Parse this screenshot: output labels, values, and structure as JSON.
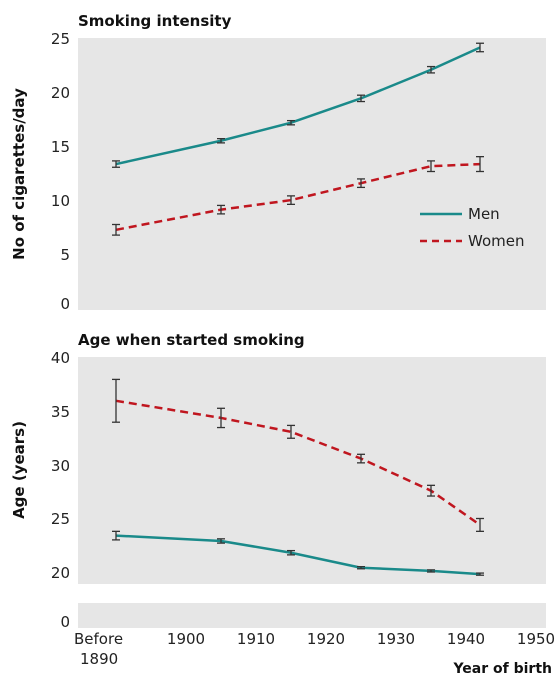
{
  "chart_data": [
    {
      "type": "line",
      "title": "Smoking intensity",
      "ylabel": "No of cigarettes/day",
      "xlabel": "",
      "ylim": [
        0,
        25
      ],
      "yticks": [
        "0",
        "5",
        "10",
        "15",
        "20",
        "25"
      ],
      "x": [
        1890,
        1905,
        1915,
        1925,
        1935,
        1942
      ],
      "series": [
        {
          "name": "Men",
          "color": "#1a8a8a",
          "style": "solid",
          "values": [
            13.2,
            15.4,
            17.1,
            19.4,
            22.1,
            24.2
          ],
          "ci_low": [
            12.9,
            15.2,
            16.9,
            19.1,
            21.8,
            23.8
          ],
          "ci_high": [
            13.5,
            15.6,
            17.3,
            19.7,
            22.4,
            24.6
          ]
        },
        {
          "name": "Women",
          "color": "#c0161f",
          "style": "dashed",
          "values": [
            7.0,
            8.9,
            9.8,
            11.4,
            13.0,
            13.2
          ],
          "ci_low": [
            6.5,
            8.5,
            9.4,
            11.0,
            12.5,
            12.5
          ],
          "ci_high": [
            7.5,
            9.3,
            10.2,
            11.8,
            13.5,
            13.9
          ]
        }
      ],
      "legend_position": "right"
    },
    {
      "type": "line",
      "title": "Age when started smoking",
      "ylabel": "Age (years)",
      "xlabel": "Year of birth",
      "ylim_break": [
        0,
        20,
        40
      ],
      "yticks": [
        "0",
        "20",
        "25",
        "30",
        "35",
        "40"
      ],
      "x": [
        1890,
        1905,
        1915,
        1925,
        1935,
        1942
      ],
      "xticks": [
        {
          "value": 1890,
          "label": "Before",
          "label2": "1890"
        },
        {
          "value": 1900,
          "label": "1900"
        },
        {
          "value": 1910,
          "label": "1910"
        },
        {
          "value": 1920,
          "label": "1920"
        },
        {
          "value": 1930,
          "label": "1930"
        },
        {
          "value": 1940,
          "label": "1940"
        },
        {
          "value": 1950,
          "label": "1950"
        }
      ],
      "series": [
        {
          "name": "Men",
          "color": "#1a8a8a",
          "style": "solid",
          "values": [
            23.4,
            22.9,
            21.8,
            20.4,
            20.1,
            19.8
          ],
          "ci_low": [
            23.0,
            22.7,
            21.6,
            20.3,
            20.0,
            19.7
          ],
          "ci_high": [
            23.8,
            23.1,
            22.0,
            20.5,
            20.2,
            19.9
          ]
        },
        {
          "name": "Women",
          "color": "#c0161f",
          "style": "dashed",
          "values": [
            36.0,
            34.4,
            33.1,
            30.6,
            27.6,
            24.4
          ],
          "ci_low": [
            34.0,
            33.5,
            32.5,
            30.2,
            27.1,
            23.8
          ],
          "ci_high": [
            38.0,
            35.3,
            33.7,
            31.0,
            28.1,
            25.0
          ]
        }
      ]
    }
  ]
}
